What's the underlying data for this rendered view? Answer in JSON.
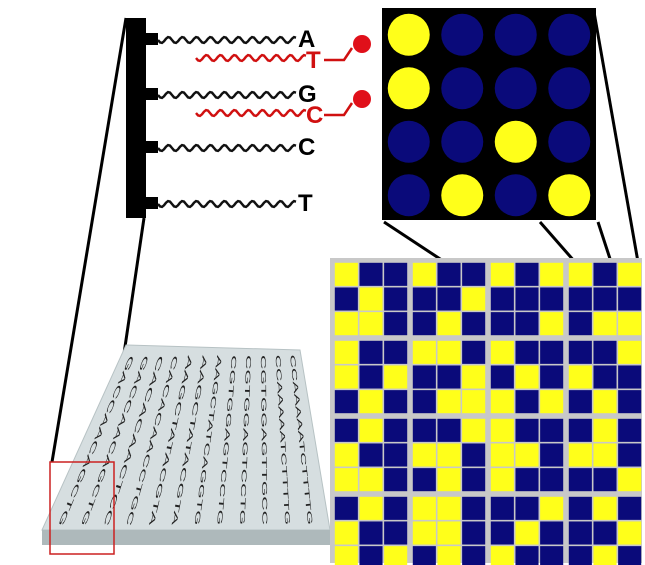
{
  "probes": [
    {
      "base": "A",
      "target": "T",
      "labeled": true
    },
    {
      "base": "G",
      "target": "C",
      "labeled": true
    },
    {
      "base": "C",
      "target": "",
      "labeled": false
    },
    {
      "base": "T",
      "target": "",
      "labeled": false
    }
  ],
  "zoom_grid": {
    "rows": 4,
    "cols": 4,
    "pattern": [
      [
        1,
        0,
        0,
        0
      ],
      [
        1,
        0,
        0,
        0
      ],
      [
        0,
        0,
        1,
        0
      ],
      [
        0,
        1,
        0,
        1
      ]
    ]
  },
  "chip_array": {
    "block_rows": 4,
    "block_cols": 4,
    "cells_per_block": 3,
    "blocks": [
      [
        [
          [
            1,
            0,
            0
          ],
          [
            0,
            1,
            0
          ],
          [
            1,
            1,
            0
          ]
        ],
        [
          [
            1,
            0,
            0
          ],
          [
            0,
            0,
            1
          ],
          [
            0,
            1,
            0
          ]
        ],
        [
          [
            1,
            0,
            1
          ],
          [
            0,
            0,
            0
          ],
          [
            0,
            0,
            1
          ]
        ],
        [
          [
            1,
            0,
            1
          ],
          [
            0,
            0,
            0
          ],
          [
            0,
            1,
            1
          ]
        ]
      ],
      [
        [
          [
            1,
            0,
            0
          ],
          [
            1,
            0,
            1
          ],
          [
            0,
            1,
            0
          ]
        ],
        [
          [
            1,
            1,
            0
          ],
          [
            0,
            0,
            1
          ],
          [
            0,
            1,
            1
          ]
        ],
        [
          [
            1,
            0,
            0
          ],
          [
            0,
            1,
            0
          ],
          [
            1,
            0,
            1
          ]
        ],
        [
          [
            0,
            0,
            1
          ],
          [
            1,
            0,
            0
          ],
          [
            0,
            1,
            0
          ]
        ]
      ],
      [
        [
          [
            0,
            1,
            0
          ],
          [
            1,
            0,
            0
          ],
          [
            1,
            1,
            0
          ]
        ],
        [
          [
            0,
            0,
            1
          ],
          [
            1,
            1,
            0
          ],
          [
            0,
            1,
            0
          ]
        ],
        [
          [
            1,
            0,
            0
          ],
          [
            1,
            1,
            0
          ],
          [
            1,
            0,
            0
          ]
        ],
        [
          [
            0,
            1,
            0
          ],
          [
            1,
            1,
            0
          ],
          [
            0,
            0,
            1
          ]
        ]
      ],
      [
        [
          [
            0,
            1,
            0
          ],
          [
            1,
            0,
            0
          ],
          [
            1,
            0,
            1
          ]
        ],
        [
          [
            1,
            1,
            0
          ],
          [
            1,
            1,
            0
          ],
          [
            0,
            1,
            0
          ]
        ],
        [
          [
            0,
            0,
            1
          ],
          [
            0,
            1,
            0
          ],
          [
            1,
            0,
            0
          ]
        ],
        [
          [
            0,
            1,
            0
          ],
          [
            0,
            0,
            1
          ],
          [
            0,
            1,
            0
          ]
        ]
      ]
    ]
  },
  "slide_sequences": [
    "GACCAACAGCTG",
    "GACCAACAGCTG",
    "CACACAACTCC",
    "CACACAACCTGC",
    "AAGCTATACGTA",
    "AAGCTATACGTA",
    "AAGCTATCAGGTG",
    "CGTGGAGTCCTG",
    "CGTGGAGTCCTG",
    "CGTGGAGTTGCC",
    "CCAAAAATCTTTTG",
    "CCAAAAATCTTTTG"
  ],
  "colors": {
    "probe_strand": "#111111",
    "target_strand": "#d01010",
    "label_dot": "#e0101a",
    "spot_dark": "#0a0a7a",
    "spot_bright": "#ffff1a",
    "chip_bg": "#c8c8c8",
    "slide": "#cfd8da",
    "highlight_box": "#cc2020"
  }
}
